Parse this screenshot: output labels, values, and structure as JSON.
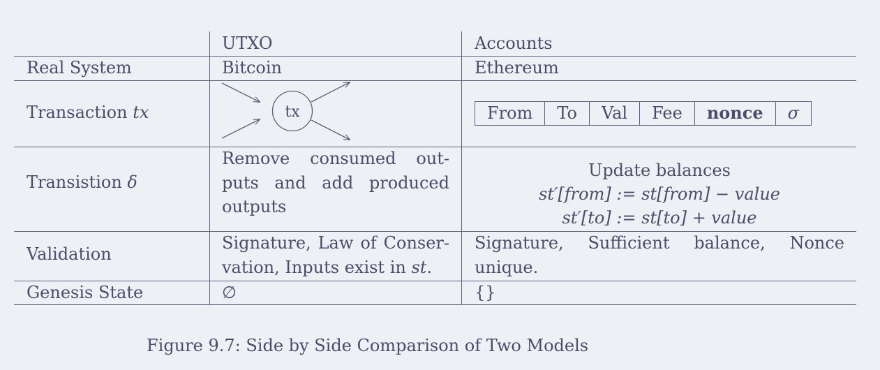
{
  "table": {
    "header": {
      "col_utxo": "UTXO",
      "col_accounts": "Accounts"
    },
    "rows": {
      "real_system": {
        "label": "Real System",
        "utxo": "Bitcoin",
        "accounts": "Ethereum"
      },
      "transaction": {
        "label": "Transaction",
        "label_var": "tx",
        "utxo_node_label": "tx",
        "accounts_fields": [
          "From",
          "To",
          "Val",
          "Fee",
          "nonce",
          "σ"
        ]
      },
      "transition": {
        "label": "Transistion",
        "label_var": "δ",
        "utxo_lines": [
          "Remove consumed out-",
          "puts and add produced",
          "outputs"
        ],
        "accounts_title": "Update balances",
        "accounts_formula_1": "st′[from] := st[from] − value",
        "accounts_formula_2": "st′[to] := st[to] + value"
      },
      "validation": {
        "label": "Validation",
        "utxo_line_1": "Signature, Law of Conser-",
        "utxo_line_2_prefix": "vation, Inputs exist in",
        "utxo_line_2_var": "st",
        "utxo_line_2_suffix": ".",
        "accounts_line_1": "Signature,  Sufficient  balance,  Nonce",
        "accounts_line_2": "unique."
      },
      "genesis": {
        "label": "Genesis State",
        "utxo": "∅",
        "accounts": "{}"
      }
    }
  },
  "caption": "Figure 9.7: Side by Side Comparison of Two Models",
  "colors": {
    "background": "#eff0f5",
    "ink": "#4a4d6a",
    "rule": "#5c5f78"
  }
}
